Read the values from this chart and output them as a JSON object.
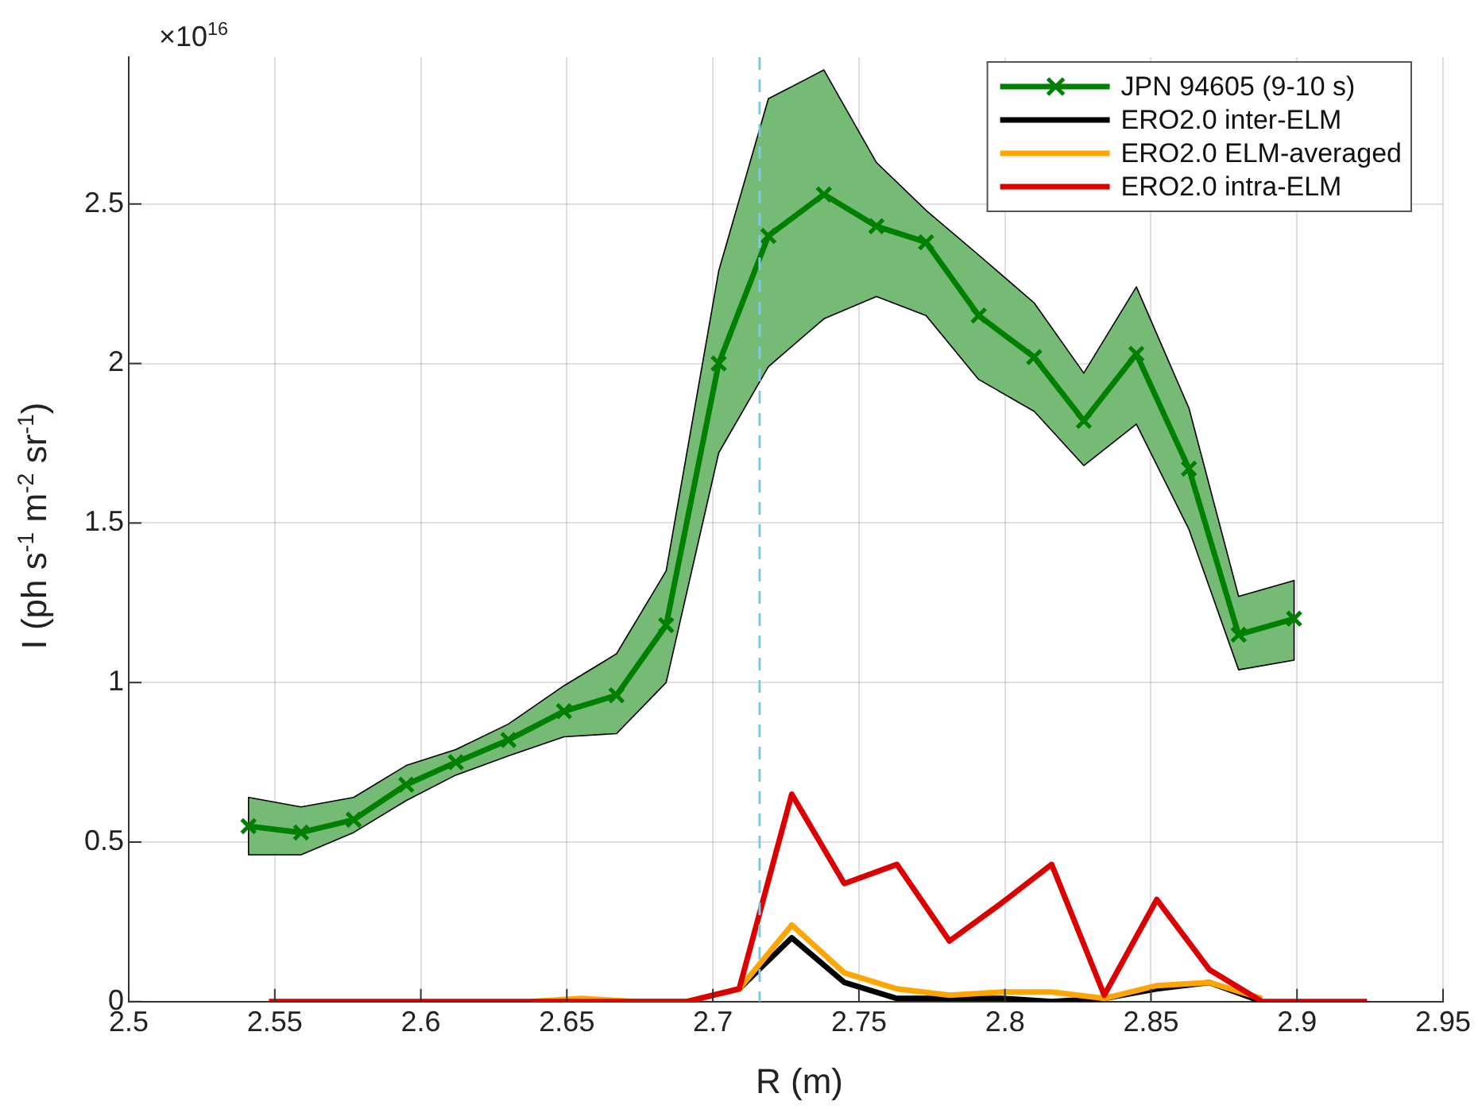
{
  "chart_data": {
    "type": "line",
    "xlabel": "R (m)",
    "ylabel": "I (ph s$^{-1}$ m$^{-2}$ sr$^{-1}$)",
    "annotations": [
      "×10$^{16}$"
    ],
    "xlim": [
      2.5,
      2.95
    ],
    "xticks": [
      2.5,
      2.55,
      2.6,
      2.65,
      2.7,
      2.75,
      2.8,
      2.85,
      2.9,
      2.95
    ],
    "ylim": [
      0,
      2.96
    ],
    "yticks": [
      0,
      0.5,
      1,
      1.5,
      2,
      2.5
    ],
    "grid": true,
    "legend": "top right",
    "ref_lines": [
      {
        "axis": "x",
        "value": 2.716,
        "color": "#7ec8e3",
        "line_style": "dashed"
      }
    ],
    "series": [
      {
        "name": "JPN 94605 (9-10 s)",
        "color": "#008000",
        "marker": "cross",
        "x": [
          2.541,
          2.559,
          2.577,
          2.595,
          2.612,
          2.63,
          2.649,
          2.667,
          2.684,
          2.702,
          2.719,
          2.738,
          2.756,
          2.773,
          2.791,
          2.81,
          2.827,
          2.845,
          2.863,
          2.88,
          2.899
        ],
        "values": [
          0.55,
          0.53,
          0.57,
          0.68,
          0.75,
          0.82,
          0.91,
          0.96,
          1.18,
          2.0,
          2.4,
          2.53,
          2.43,
          2.38,
          2.15,
          2.02,
          1.82,
          2.03,
          1.67,
          1.15,
          1.2
        ],
        "lower": [
          0.46,
          0.46,
          0.53,
          0.63,
          0.71,
          0.77,
          0.83,
          0.84,
          1.0,
          1.72,
          1.99,
          2.14,
          2.21,
          2.15,
          1.95,
          1.85,
          1.68,
          1.81,
          1.48,
          1.04,
          1.07
        ],
        "upper": [
          0.64,
          0.61,
          0.64,
          0.74,
          0.79,
          0.87,
          0.99,
          1.09,
          1.35,
          2.29,
          2.83,
          2.92,
          2.63,
          2.48,
          2.34,
          2.19,
          1.97,
          2.24,
          1.86,
          1.27,
          1.32
        ]
      },
      {
        "name": "ERO2.0 inter-ELM",
        "color": "#000000",
        "x": [
          2.709,
          2.727,
          2.745,
          2.763,
          2.781,
          2.799,
          2.816,
          2.834,
          2.852,
          2.87,
          2.888
        ],
        "values": [
          0.04,
          0.2,
          0.06,
          0.01,
          0.01,
          0.01,
          0,
          0.01,
          0.04,
          0.06,
          0
        ]
      },
      {
        "name": "ERO2.0 ELM-averaged",
        "color": "#ffa500",
        "x": [
          2.638,
          2.655,
          2.673,
          2.691,
          2.709,
          2.727,
          2.745,
          2.763,
          2.781,
          2.799,
          2.816,
          2.834,
          2.852,
          2.87,
          2.888
        ],
        "values": [
          0,
          0.01,
          0,
          0,
          0.04,
          0.24,
          0.09,
          0.04,
          0.02,
          0.03,
          0.03,
          0.01,
          0.05,
          0.06,
          0.01
        ]
      },
      {
        "name": "ERO2.0 intra-ELM",
        "color": "#dd0000",
        "x": [
          2.548,
          2.566,
          2.584,
          2.602,
          2.62,
          2.638,
          2.655,
          2.673,
          2.691,
          2.709,
          2.727,
          2.745,
          2.763,
          2.781,
          2.799,
          2.816,
          2.834,
          2.852,
          2.87,
          2.888,
          2.906,
          2.924
        ],
        "values": [
          0,
          0,
          0,
          0,
          0,
          0,
          0,
          0,
          0,
          0.04,
          0.65,
          0.37,
          0.43,
          0.19,
          0.31,
          0.43,
          0.02,
          0.32,
          0.1,
          0,
          0,
          0
        ]
      }
    ]
  }
}
